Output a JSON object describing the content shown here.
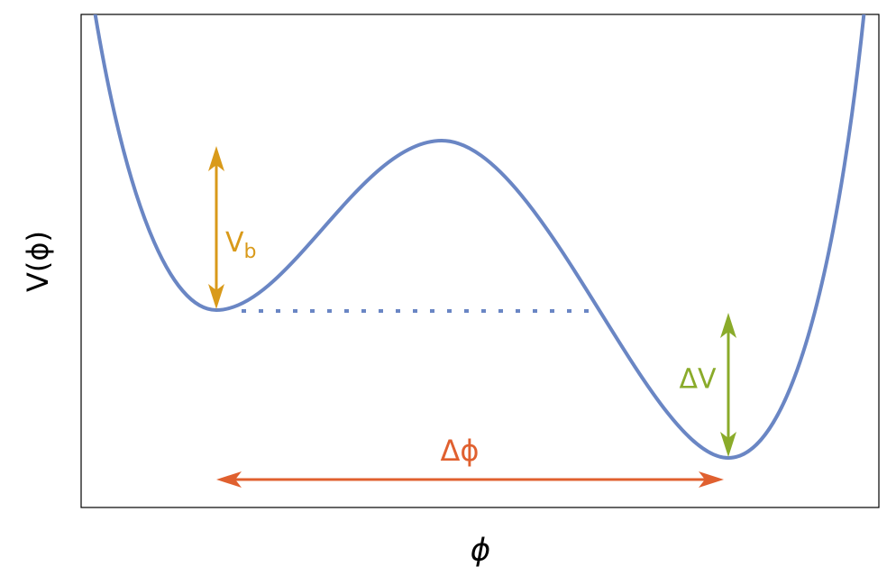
{
  "axes": {
    "x_label": "ϕ",
    "y_label": "V(ϕ)"
  },
  "annotations": {
    "barrier": {
      "main": "V",
      "sub": "b"
    },
    "delta_v": "ΔV",
    "delta_phi": "Δϕ"
  }
}
